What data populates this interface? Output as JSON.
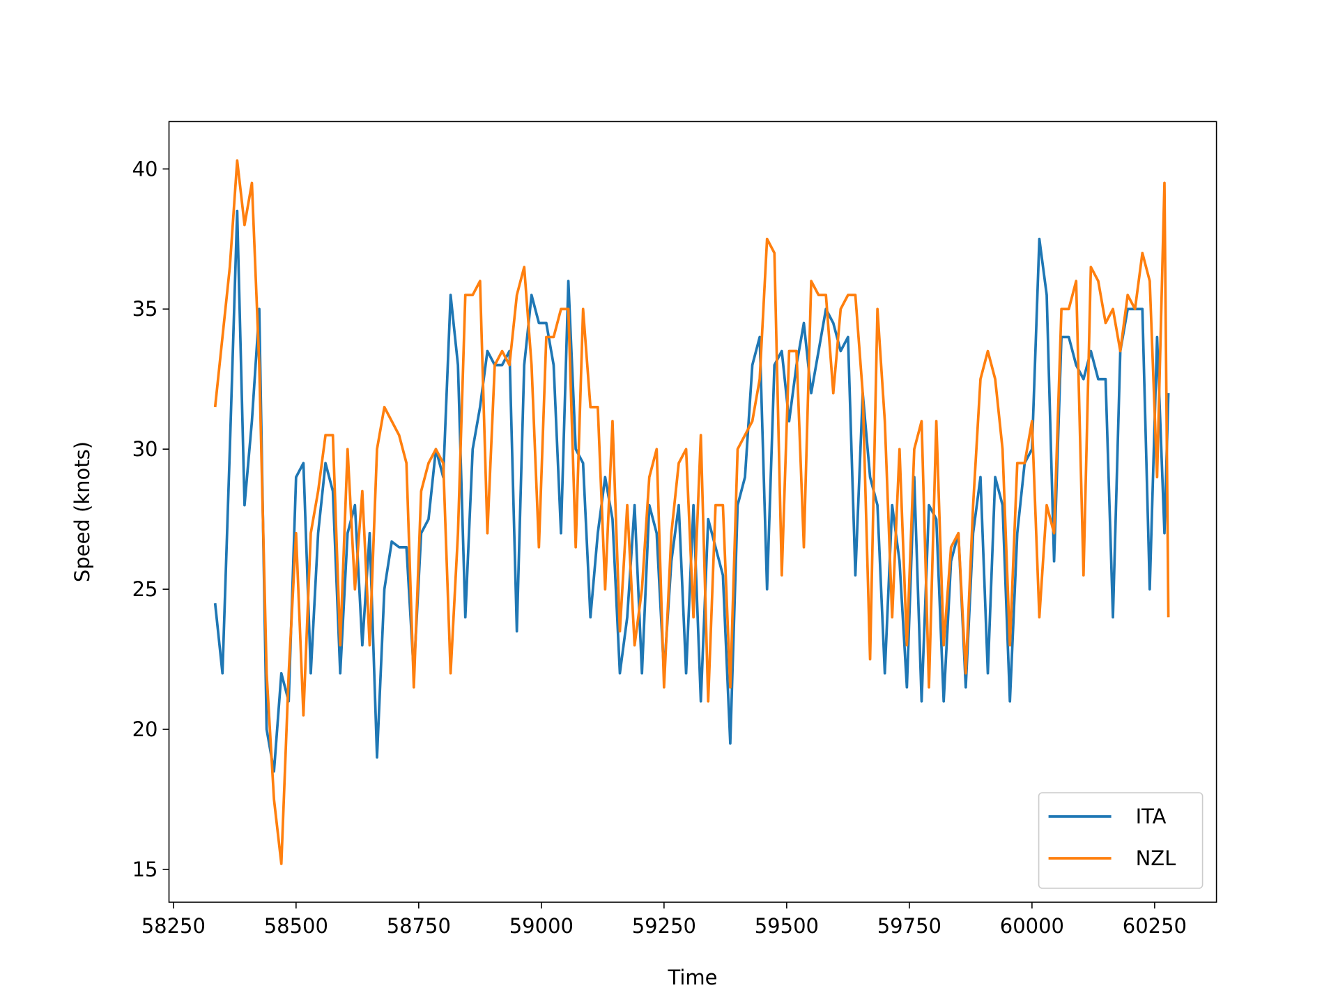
{
  "chart_data": {
    "type": "line",
    "x_label": "Time",
    "y_label": "Speed (knots)",
    "x": [
      58335,
      58350,
      58365,
      58380,
      58395,
      58410,
      58425,
      58440,
      58455,
      58470,
      58485,
      58500,
      58515,
      58530,
      58545,
      58560,
      58575,
      58590,
      58605,
      58620,
      58635,
      58650,
      58665,
      58680,
      58695,
      58710,
      58725,
      58740,
      58755,
      58770,
      58785,
      58800,
      58815,
      58830,
      58845,
      58860,
      58875,
      58890,
      58905,
      58920,
      58935,
      58950,
      58965,
      58980,
      58995,
      59010,
      59025,
      59040,
      59055,
      59070,
      59085,
      59100,
      59115,
      59130,
      59145,
      59160,
      59175,
      59190,
      59205,
      59220,
      59235,
      59250,
      59265,
      59280,
      59295,
      59310,
      59325,
      59340,
      59355,
      59370,
      59385,
      59400,
      59415,
      59430,
      59445,
      59460,
      59475,
      59490,
      59505,
      59520,
      59535,
      59550,
      59565,
      59580,
      59595,
      59610,
      59625,
      59640,
      59655,
      59670,
      59685,
      59700,
      59715,
      59730,
      59745,
      59760,
      59775,
      59790,
      59805,
      59820,
      59835,
      59850,
      59865,
      59880,
      59895,
      59910,
      59925,
      59940,
      59955,
      59970,
      59985,
      60000,
      60015,
      60030,
      60045,
      60060,
      60075,
      60090,
      60105,
      60120,
      60135,
      60150,
      60165,
      60180,
      60195,
      60210,
      60225,
      60240,
      60255,
      60270,
      60278
    ],
    "series": [
      {
        "name": "ITA",
        "color": "#1f77b4",
        "values": [
          24.5,
          22,
          30,
          38.5,
          28,
          31,
          35,
          20,
          18.5,
          22,
          21,
          29,
          29.5,
          22,
          27,
          29.5,
          28.5,
          22,
          27,
          28,
          23,
          27,
          19,
          25,
          26.7,
          26.5,
          26.5,
          22,
          27,
          27.5,
          30,
          29,
          35.5,
          33,
          24,
          30,
          31.5,
          33.5,
          33,
          33,
          33.5,
          23.5,
          33,
          35.5,
          34.5,
          34.5,
          33,
          27,
          36,
          30,
          29.5,
          24,
          27,
          29,
          27.5,
          22,
          24,
          28,
          22,
          28,
          27,
          22,
          26,
          28,
          22,
          28,
          21,
          27.5,
          26.5,
          25.5,
          19.5,
          28,
          29,
          33,
          34,
          25,
          33,
          33.5,
          31,
          33,
          34.5,
          32,
          33.5,
          35,
          34.5,
          33.5,
          34,
          25.5,
          32,
          29,
          28,
          22,
          28,
          26,
          21.5,
          29,
          21,
          28,
          27.5,
          21,
          26,
          27,
          21.5,
          27,
          29,
          22,
          29,
          28,
          21,
          27,
          29.5,
          30,
          37.5,
          35.5,
          26,
          34,
          34,
          33,
          32.5,
          33.5,
          32.5,
          32.5,
          24,
          33.5,
          35,
          35,
          35,
          25,
          34,
          27,
          32
        ]
      },
      {
        "name": "NZL",
        "color": "#ff7f0e",
        "values": [
          31.5,
          34,
          36.5,
          40.3,
          38,
          39.5,
          33,
          22,
          17.5,
          15.2,
          22,
          27,
          20.5,
          27,
          28.5,
          30.5,
          30.5,
          23,
          30,
          25,
          28.5,
          23,
          30,
          31.5,
          31,
          30.5,
          29.5,
          21.5,
          28.5,
          29.5,
          30,
          29.5,
          22,
          27,
          35.5,
          35.5,
          36,
          27,
          33,
          33.5,
          33,
          35.5,
          36.5,
          33,
          26.5,
          34,
          34,
          35,
          35,
          26.5,
          35,
          31.5,
          31.5,
          25,
          31,
          23.5,
          28,
          23,
          25,
          29,
          30,
          21.5,
          27,
          29.5,
          30,
          24,
          30.5,
          21,
          28,
          28,
          21.5,
          30,
          30.5,
          31,
          32.5,
          37.5,
          37,
          25.5,
          33.5,
          33.5,
          26.5,
          36,
          35.5,
          35.5,
          32,
          35,
          35.5,
          35.5,
          32,
          22.5,
          35,
          31,
          24,
          30,
          23,
          30,
          31,
          21.5,
          31,
          23,
          26.5,
          27,
          22,
          28,
          32.5,
          33.5,
          32.5,
          30,
          23,
          29.5,
          29.5,
          31,
          24,
          28,
          27,
          35,
          35,
          36,
          25.5,
          36.5,
          36,
          34.5,
          35,
          33.5,
          35.5,
          35,
          37,
          36,
          29,
          39.5,
          24
        ]
      }
    ],
    "xlim": [
      58241,
      60376
    ],
    "ylim": [
      13.83,
      41.69
    ],
    "xticks": [
      58250,
      58500,
      58750,
      59000,
      59250,
      59500,
      59750,
      60000,
      60250
    ],
    "yticks": [
      15,
      20,
      25,
      30,
      35,
      40
    ],
    "legend": "lower right",
    "grid": false
  }
}
